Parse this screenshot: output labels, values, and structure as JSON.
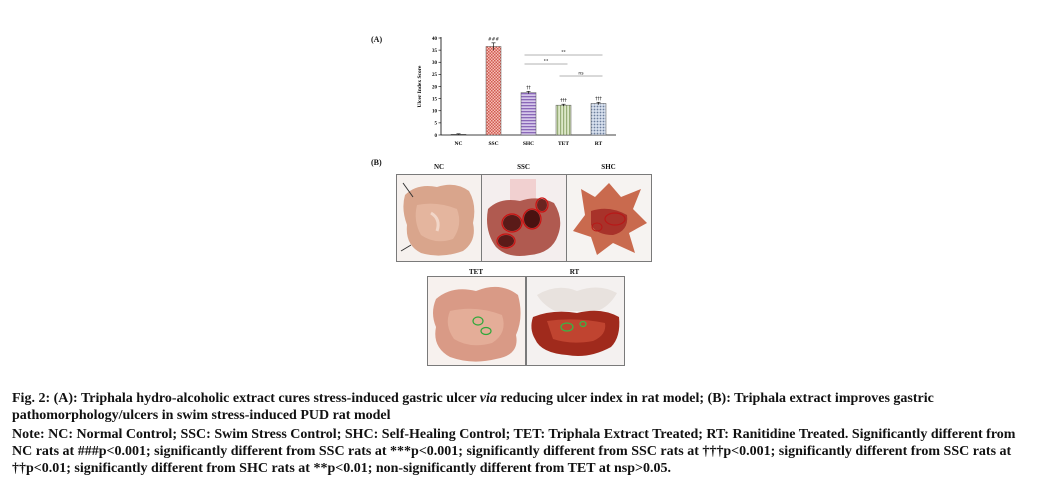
{
  "panel_a": {
    "label": "(A)"
  },
  "panel_b": {
    "label": "(B)"
  },
  "chart_data": {
    "type": "bar",
    "ylabel": "Ulcer Index Score",
    "xlabel": "",
    "ylim": [
      0,
      40
    ],
    "yticks": [
      "0",
      "5",
      "10",
      "15",
      "20",
      "25",
      "30",
      "35",
      "40"
    ],
    "categories": [
      "NC",
      "SSC",
      "SHC",
      "TET",
      "RT"
    ],
    "values": [
      0.3,
      36.5,
      17.5,
      12.3,
      13
    ],
    "errors": [
      0.2,
      1.5,
      0.5,
      0.4,
      0.5
    ],
    "bar_annotations": [
      "",
      "###",
      "††",
      "†††",
      "†††"
    ],
    "bar_colors": [
      "#4a4a4a",
      "#f0a8a0",
      "#b49ad0",
      "#c8d8b0",
      "#a8b8d0"
    ],
    "comparisons": [
      {
        "from": 2,
        "to": 4,
        "label": "**"
      },
      {
        "from": 2,
        "to": 3,
        "label": "**"
      },
      {
        "from": 3,
        "to": 4,
        "label": "ns"
      }
    ]
  },
  "photos": [
    {
      "label": "NC"
    },
    {
      "label": "SSC"
    },
    {
      "label": "SHC"
    },
    {
      "label": "TET"
    },
    {
      "label": "RT"
    }
  ],
  "caption": {
    "title_part1": "Fig. 2: (A): Triphala hydro-alcoholic extract cures stress-induced gastric ulcer ",
    "title_italic": "via",
    "title_part2": " reducing ulcer index in rat model; (B): Triphala extract improves gastric pathomorphology/ulcers in swim stress-induced PUD rat model",
    "note": "Note: NC: Normal Control; SSC: Swim Stress Control; SHC: Self-Healing Control; TET: Triphala Extract Treated; RT: Ranitidine Treated. Significantly different from NC rats at ###p<0.001; significantly different from SSC rats at ***p<0.001; significantly different from SSC rats at †††p<0.001; significantly different from SSC rats at ††p<0.01; significantly different from SHC rats at **p<0.01; non-significantly different from TET at nsp>0.05."
  }
}
